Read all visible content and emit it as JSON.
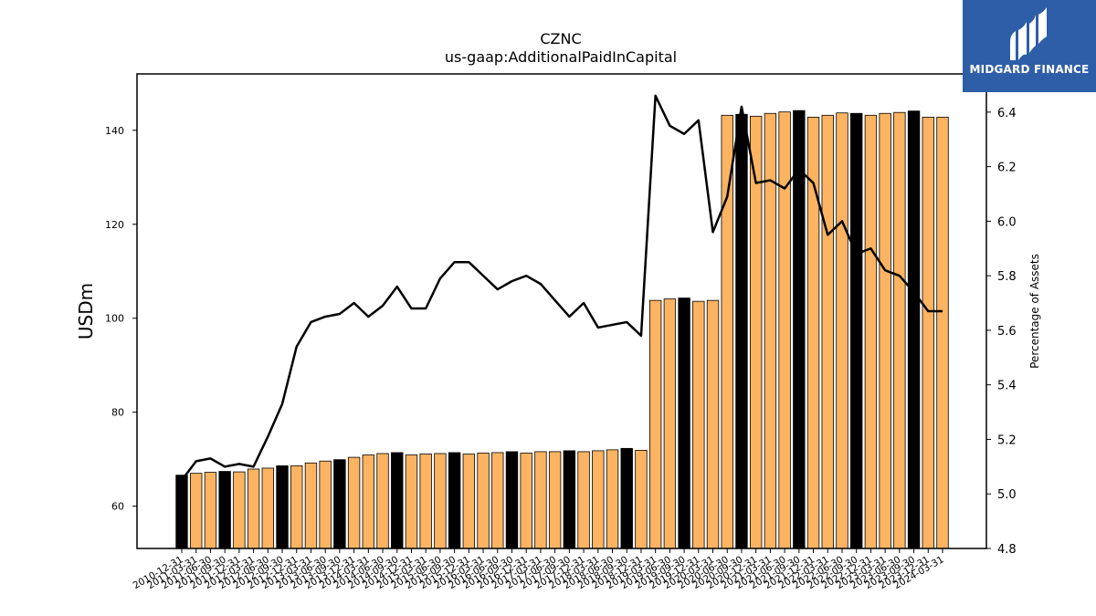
{
  "chart_data": {
    "type": "bar",
    "title": "CZNC",
    "subtitle": "us-gaap:AdditionalPaidInCapital",
    "ylabel": "USDm",
    "y2label": "Percentage of Assets",
    "ylim": [
      51,
      152
    ],
    "y2lim": [
      4.8,
      6.54
    ],
    "yticks": [
      60,
      80,
      100,
      120,
      140
    ],
    "y2ticks": [
      4.8,
      5.0,
      5.2,
      5.4,
      5.6,
      5.8,
      6.0,
      6.2,
      6.4
    ],
    "colors": {
      "quarter_bar": "#fdb462",
      "year_end_bar": "#000000",
      "line": "#000000"
    },
    "categories": [
      "2010-12-31",
      "2011-03-31",
      "2011-06-30",
      "2011-09-30",
      "2011-12-31",
      "2012-03-31",
      "2012-06-30",
      "2012-09-30",
      "2012-12-31",
      "2013-03-31",
      "2013-06-30",
      "2013-09-30",
      "2013-12-31",
      "2014-03-31",
      "2014-06-30",
      "2014-09-30",
      "2014-12-31",
      "2015-03-31",
      "2015-06-30",
      "2015-09-30",
      "2015-12-31",
      "2016-03-31",
      "2016-06-30",
      "2016-09-30",
      "2016-12-31",
      "2017-03-31",
      "2017-06-30",
      "2017-09-30",
      "2017-12-31",
      "2018-03-31",
      "2018-06-30",
      "2018-09-30",
      "2018-12-31",
      "2019-03-31",
      "2019-06-30",
      "2019-09-30",
      "2019-12-31",
      "2020-03-31",
      "2020-06-30",
      "2020-09-30",
      "2020-12-31",
      "2021-03-31",
      "2021-06-30",
      "2021-09-30",
      "2021-12-31",
      "2022-03-31",
      "2022-06-30",
      "2022-09-30",
      "2022-12-31",
      "2023-03-31",
      "2023-06-30",
      "2023-09-30",
      "2023-12-31",
      "2024-03-31"
    ],
    "series": [
      {
        "type": "bar",
        "values": [
          66.6,
          67.0,
          67.2,
          67.4,
          67.3,
          67.9,
          68.1,
          68.6,
          68.6,
          69.2,
          69.6,
          69.9,
          70.4,
          70.9,
          71.2,
          71.4,
          70.9,
          71.1,
          71.2,
          71.4,
          71.1,
          71.3,
          71.4,
          71.6,
          71.3,
          71.6,
          71.6,
          71.8,
          71.6,
          71.8,
          72.0,
          72.3,
          71.9,
          103.8,
          104.1,
          104.3,
          103.6,
          103.8,
          143.2,
          143.4,
          143.0,
          143.6,
          143.9,
          144.2,
          142.8,
          143.2,
          143.7,
          143.6,
          143.2,
          143.6,
          143.8,
          144.1,
          142.8,
          142.8
        ]
      },
      {
        "type": "line",
        "axis": "right",
        "values": [
          5.05,
          5.12,
          5.13,
          5.1,
          5.11,
          5.1,
          5.21,
          5.33,
          5.54,
          5.63,
          5.65,
          5.66,
          5.7,
          5.65,
          5.69,
          5.76,
          5.68,
          5.68,
          5.79,
          5.85,
          5.85,
          5.8,
          5.75,
          5.78,
          5.8,
          5.77,
          5.71,
          5.65,
          5.7,
          5.61,
          5.62,
          5.63,
          5.58,
          6.46,
          6.35,
          6.32,
          6.37,
          5.96,
          6.09,
          6.42,
          6.14,
          6.15,
          6.12,
          6.19,
          6.14,
          5.95,
          6.0,
          5.88,
          5.9,
          5.82,
          5.8,
          5.74,
          5.67,
          5.67
        ]
      }
    ],
    "year_end_indices": [
      0,
      3,
      7,
      11,
      15,
      19,
      23,
      27,
      31,
      35,
      39,
      43,
      47,
      51
    ],
    "grid": false,
    "legend": "none"
  },
  "logo": {
    "name": "midgard-finance-logo",
    "text": "MIDGARD FINANCE"
  }
}
